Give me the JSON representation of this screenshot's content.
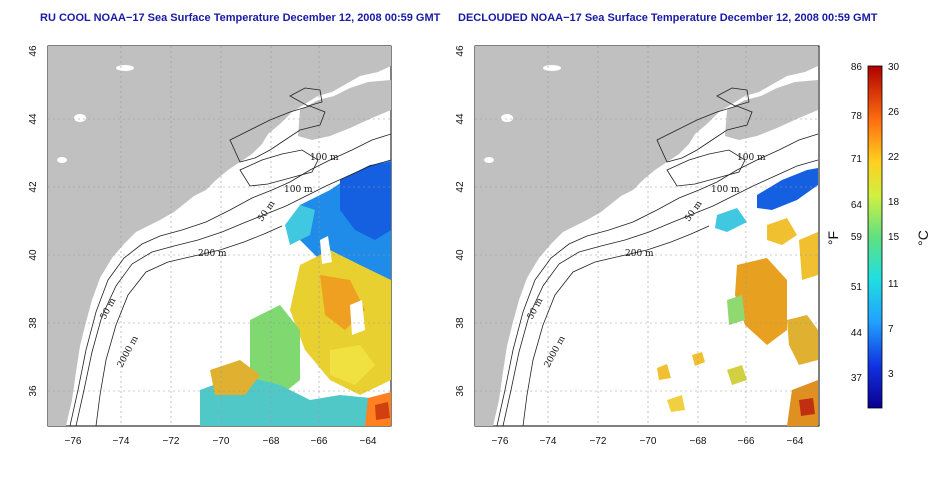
{
  "colors": {
    "title": "#1a1aa6",
    "land": "#c0c0c0"
  },
  "panels": [
    {
      "id": "left",
      "title": "RU COOL NOAA−17 Sea Surface Temperature December 12, 2008 00:59 GMT"
    },
    {
      "id": "right",
      "title": "DECLOUDED NOAA−17 Sea Surface Temperature December 12, 2008 00:59 GMT"
    }
  ],
  "x_ticks": [
    "−76",
    "−74",
    "−72",
    "−70",
    "−68",
    "−66",
    "−64"
  ],
  "y_ticks": [
    "36",
    "38",
    "40",
    "42",
    "44",
    "46"
  ],
  "contour_labels": {
    "left": [
      "100 m",
      "100 m",
      "50 m",
      "200 m",
      "50 m",
      "2000 m"
    ],
    "right": [
      "100 m",
      "100 m",
      "50 m",
      "200 m",
      "50 m",
      "2000 m"
    ]
  },
  "colorbar": {
    "fahrenheit": [
      "86",
      "78",
      "71",
      "64",
      "59",
      "51",
      "44",
      "37"
    ],
    "celsius": [
      "30",
      "26",
      "22",
      "18",
      "15",
      "11",
      "7",
      "3"
    ],
    "f_unit": "°F",
    "c_unit": "°C"
  }
}
